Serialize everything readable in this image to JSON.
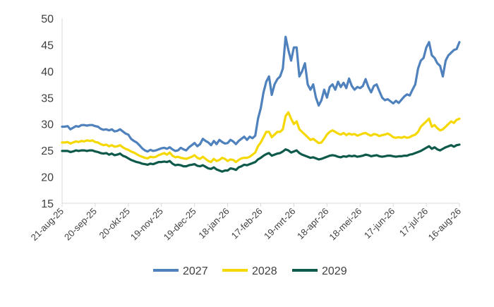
{
  "chart_data": {
    "type": "line",
    "title": "",
    "xlabel": "",
    "ylabel": "",
    "ylim": [
      15,
      50
    ],
    "yticks": [
      15,
      20,
      25,
      30,
      35,
      40,
      45,
      50
    ],
    "grid": false,
    "legend_position": "bottom",
    "x_ticks": [
      "21-aug-25",
      "20-sep-25",
      "20-okt-25",
      "19-nov-25",
      "19-dec-25",
      "18-jan-26",
      "17-feb-26",
      "19-mrt-26",
      "18-apr-26",
      "18-mei-26",
      "17-jun-26",
      "17-jul-26",
      "16-aug-26"
    ],
    "series": [
      {
        "name": "2027",
        "color": "#4f81bd",
        "values": [
          29.5,
          29.5,
          29.6,
          29.0,
          29.3,
          29.6,
          29.5,
          29.8,
          29.8,
          29.7,
          29.8,
          29.8,
          29.6,
          29.5,
          29.1,
          28.9,
          29.0,
          28.8,
          29.0,
          28.6,
          28.7,
          29.0,
          28.6,
          28.2,
          28.0,
          27.2,
          26.8,
          26.5,
          26.0,
          25.4,
          25.0,
          24.8,
          25.1,
          24.9,
          25.0,
          25.2,
          25.4,
          25.5,
          25.3,
          25.6,
          25.2,
          24.9,
          25.0,
          25.5,
          25.2,
          25.0,
          25.6,
          26.0,
          26.4,
          25.8,
          26.2,
          27.2,
          26.8,
          26.5,
          26.0,
          26.8,
          26.2,
          27.0,
          26.6,
          26.3,
          26.4,
          27.0,
          26.7,
          26.2,
          26.8,
          27.2,
          27.6,
          27.0,
          27.6,
          27.3,
          27.8,
          31.0,
          33.0,
          36.0,
          38.0,
          39.0,
          35.5,
          37.5,
          38.5,
          39.0,
          40.5,
          46.5,
          44.0,
          42.0,
          44.5,
          44.5,
          39.0,
          40.0,
          41.5,
          37.5,
          36.5,
          37.5,
          35.0,
          33.5,
          34.5,
          36.5,
          35.0,
          37.0,
          37.5,
          36.5,
          38.0,
          37.0,
          37.8,
          36.8,
          38.6,
          37.2,
          36.5,
          37.0,
          36.8,
          37.2,
          38.5,
          37.0,
          36.0,
          37.2,
          37.5,
          36.2,
          35.0,
          34.5,
          34.7,
          34.3,
          33.9,
          34.4,
          34.0,
          34.6,
          35.2,
          35.6,
          35.4,
          36.5,
          37.5,
          40.5,
          42.0,
          42.5,
          44.5,
          45.5,
          43.0,
          42.5,
          41.5,
          41.0,
          39.0,
          42.0,
          43.0,
          43.5,
          44.0,
          44.2,
          45.5
        ]
      },
      {
        "name": "2028",
        "color": "#f5d800",
        "values": [
          26.5,
          26.5,
          26.6,
          26.3,
          26.5,
          26.7,
          26.6,
          26.8,
          26.7,
          26.9,
          26.8,
          26.9,
          26.6,
          26.5,
          26.2,
          26.0,
          26.1,
          25.8,
          26.0,
          25.7,
          25.8,
          26.0,
          25.6,
          25.3,
          25.1,
          24.8,
          24.6,
          24.3,
          24.0,
          23.8,
          23.6,
          23.5,
          23.8,
          23.7,
          23.8,
          24.1,
          24.3,
          24.5,
          24.2,
          24.6,
          24.0,
          23.7,
          23.8,
          23.6,
          23.5,
          23.4,
          23.6,
          23.8,
          24.1,
          23.6,
          23.4,
          23.8,
          23.4,
          23.0,
          22.8,
          23.4,
          23.0,
          23.2,
          23.6,
          23.4,
          23.0,
          23.3,
          23.2,
          22.8,
          23.2,
          23.5,
          23.6,
          23.6,
          23.8,
          24.2,
          24.6,
          25.8,
          26.5,
          27.5,
          28.5,
          28.5,
          27.5,
          28.0,
          28.5,
          28.5,
          29.0,
          31.5,
          32.2,
          31.0,
          30.0,
          30.5,
          29.0,
          28.5,
          28.0,
          27.5,
          27.0,
          27.2,
          26.8,
          26.4,
          26.5,
          27.2,
          28.0,
          28.5,
          28.8,
          28.5,
          28.2,
          28.0,
          28.3,
          27.9,
          28.2,
          28.0,
          28.1,
          27.8,
          28.0,
          28.2,
          28.3,
          28.0,
          27.8,
          28.1,
          28.0,
          27.7,
          27.9,
          28.0,
          28.2,
          27.9,
          27.5,
          27.4,
          27.5,
          27.4,
          27.6,
          27.4,
          27.5,
          27.8,
          28.0,
          28.5,
          29.5,
          30.0,
          30.5,
          31.0,
          29.5,
          29.8,
          29.2,
          28.8,
          29.0,
          29.5,
          30.0,
          30.5,
          30.2,
          30.8,
          31.0
        ]
      },
      {
        "name": "2029",
        "color": "#0e5a4a",
        "values": [
          24.9,
          24.9,
          24.9,
          24.7,
          24.8,
          25.0,
          24.9,
          25.0,
          25.0,
          24.9,
          25.0,
          25.0,
          24.8,
          24.7,
          24.5,
          24.4,
          24.5,
          24.2,
          24.4,
          24.1,
          24.2,
          24.4,
          24.0,
          23.8,
          23.5,
          23.2,
          23.0,
          22.8,
          22.7,
          22.5,
          22.4,
          22.3,
          22.5,
          22.4,
          22.6,
          22.8,
          22.8,
          22.9,
          22.8,
          23.0,
          22.5,
          22.2,
          22.3,
          22.2,
          22.0,
          22.0,
          22.2,
          22.3,
          22.4,
          22.1,
          22.0,
          22.2,
          21.9,
          21.6,
          21.5,
          21.8,
          21.4,
          21.2,
          21.0,
          21.2,
          21.2,
          21.6,
          21.5,
          21.3,
          21.8,
          22.0,
          22.3,
          22.2,
          22.4,
          22.6,
          22.8,
          23.3,
          23.6,
          24.0,
          24.3,
          24.5,
          24.0,
          24.2,
          24.4,
          24.5,
          24.8,
          25.2,
          25.0,
          24.6,
          24.8,
          25.0,
          24.5,
          24.2,
          24.0,
          23.8,
          23.6,
          23.7,
          23.5,
          23.3,
          23.4,
          23.6,
          23.8,
          24.0,
          24.1,
          24.0,
          23.8,
          23.7,
          23.9,
          23.8,
          24.0,
          23.9,
          24.0,
          23.8,
          23.9,
          24.0,
          24.2,
          24.1,
          23.9,
          24.0,
          24.1,
          23.9,
          23.8,
          23.9,
          24.0,
          24.0,
          23.9,
          23.8,
          23.9,
          23.9,
          24.0,
          24.0,
          24.2,
          24.3,
          24.5,
          24.7,
          24.9,
          25.2,
          25.5,
          25.8,
          25.3,
          25.6,
          25.2,
          25.0,
          25.3,
          25.6,
          25.8,
          26.0,
          25.7,
          26.0,
          26.1
        ]
      }
    ]
  }
}
